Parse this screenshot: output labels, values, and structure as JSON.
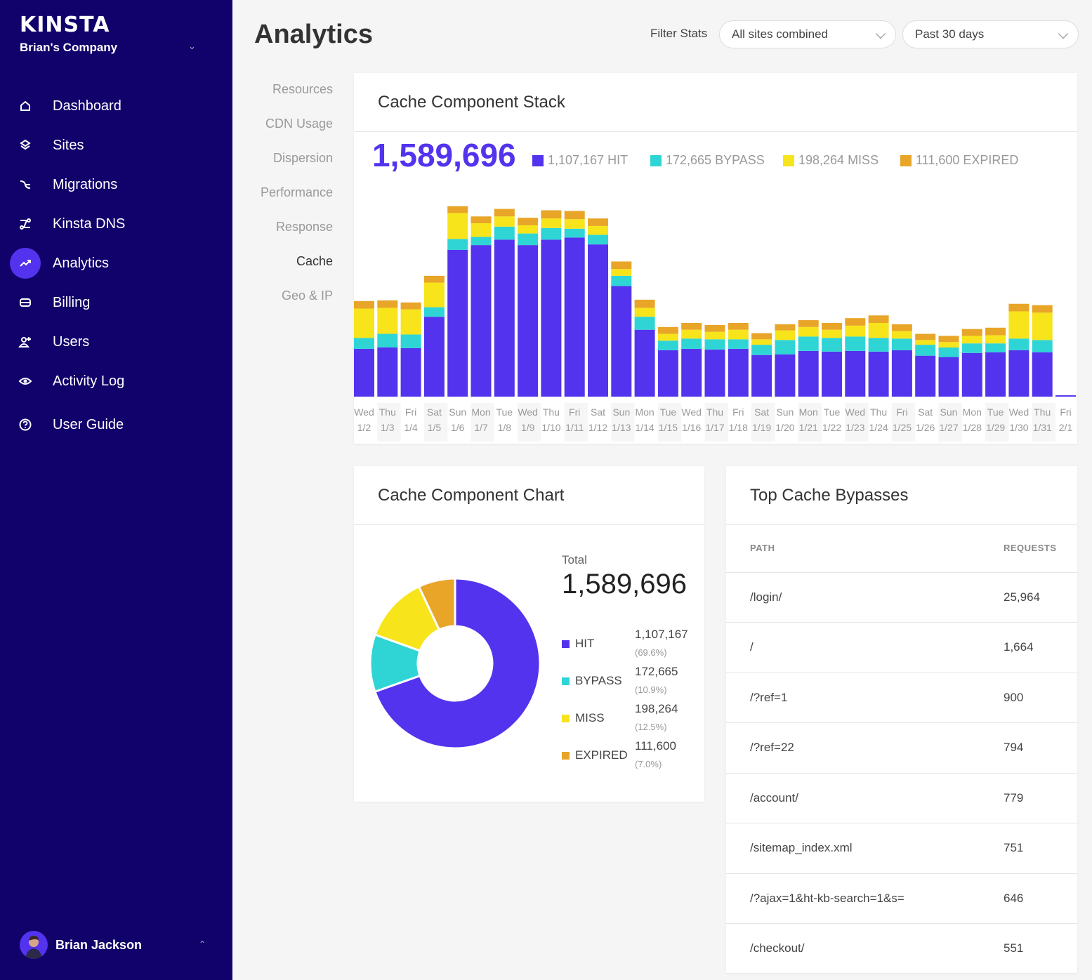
{
  "brand": {
    "logo": "KINSTA",
    "company": "Brian's Company"
  },
  "sidebar": {
    "items": [
      {
        "label": "Dashboard",
        "icon": "home-icon",
        "active": false
      },
      {
        "label": "Sites",
        "icon": "layers-icon",
        "active": false
      },
      {
        "label": "Migrations",
        "icon": "migration-icon",
        "active": false
      },
      {
        "label": "Kinsta DNS",
        "icon": "dns-icon",
        "active": false
      },
      {
        "label": "Analytics",
        "icon": "trend-icon",
        "active": true
      },
      {
        "label": "Billing",
        "icon": "card-icon",
        "active": false
      },
      {
        "label": "Users",
        "icon": "add-user-icon",
        "active": false
      },
      {
        "label": "Activity Log",
        "icon": "eye-icon",
        "active": false
      },
      {
        "label": "User Guide",
        "icon": "help-icon",
        "active": false
      }
    ],
    "user": "Brian Jackson"
  },
  "header": {
    "title": "Analytics",
    "filter_label": "Filter Stats",
    "site_select": "All sites combined",
    "range_select": "Past 30 days"
  },
  "subnav": [
    "Resources",
    "CDN Usage",
    "Dispersion",
    "Performance",
    "Response",
    "Cache",
    "Geo & IP"
  ],
  "subnav_active": "Cache",
  "colors": {
    "hit": "#5333ed",
    "bypass": "#2fd5d5",
    "miss": "#f7e41b",
    "expired": "#e8a528"
  },
  "stack": {
    "title": "Cache Component Stack",
    "total": "1,589,696",
    "legend": [
      {
        "text": "1,107,167 HIT",
        "color": "#5333ed"
      },
      {
        "text": "172,665 BYPASS",
        "color": "#2fd5d5"
      },
      {
        "text": "198,264 MISS",
        "color": "#f7e41b"
      },
      {
        "text": "111,600 EXPIRED",
        "color": "#e8a528"
      }
    ]
  },
  "chart_data": {
    "type": "bar",
    "stacked": true,
    "title": "Cache Component Stack",
    "categories": [
      "Wed 1/2",
      "Thu 1/3",
      "Fri 1/4",
      "Sat 1/5",
      "Sun 1/6",
      "Mon 1/7",
      "Tue 1/8",
      "Wed 1/9",
      "Thu 1/10",
      "Fri 1/11",
      "Sat 1/12",
      "Sun 1/13",
      "Mon 1/14",
      "Tue 1/15",
      "Wed 1/16",
      "Thu 1/17",
      "Fri 1/18",
      "Sat 1/19",
      "Sun 1/20",
      "Mon 1/21",
      "Tue 1/22",
      "Wed 1/23",
      "Thu 1/24",
      "Fri 1/25",
      "Sat 1/26",
      "Sun 1/27",
      "Mon 1/28",
      "Tue 1/29",
      "Wed 1/30",
      "Thu 1/31",
      "Fri 2/1"
    ],
    "series": [
      {
        "name": "HIT",
        "values": [
          70,
          72,
          71,
          117,
          215,
          222,
          230,
          222,
          230,
          233,
          223,
          162,
          98,
          68,
          70,
          69,
          70,
          61,
          62,
          67,
          66,
          67,
          66,
          68,
          60,
          58,
          64,
          65,
          68,
          65,
          2
        ]
      },
      {
        "name": "BYPASS",
        "values": [
          16,
          20,
          20,
          14,
          16,
          12,
          19,
          17,
          17,
          13,
          14,
          15,
          19,
          14,
          15,
          15,
          14,
          15,
          21,
          21,
          20,
          21,
          20,
          17,
          16,
          14,
          14,
          13,
          17,
          18,
          0
        ]
      },
      {
        "name": "MISS",
        "values": [
          43,
          38,
          37,
          36,
          38,
          20,
          15,
          12,
          14,
          14,
          13,
          10,
          13,
          10,
          13,
          11,
          14,
          8,
          14,
          14,
          12,
          16,
          22,
          11,
          7,
          8,
          11,
          12,
          40,
          40,
          0
        ]
      },
      {
        "name": "EXPIRED",
        "values": [
          11,
          11,
          10,
          10,
          10,
          10,
          11,
          11,
          12,
          12,
          11,
          11,
          12,
          10,
          10,
          10,
          10,
          9,
          9,
          10,
          10,
          11,
          11,
          10,
          9,
          9,
          10,
          11,
          11,
          11,
          0
        ]
      }
    ],
    "ylim": [
      0,
      290
    ]
  },
  "donut": {
    "title": "Cache Component Chart",
    "total_label": "Total",
    "total": "1,589,696",
    "rows": [
      {
        "label": "HIT",
        "value": "1,107,167",
        "pct": "(69.6%)",
        "fraction": 0.696,
        "color": "#5333ed"
      },
      {
        "label": "BYPASS",
        "value": "172,665",
        "pct": "(10.9%)",
        "fraction": 0.109,
        "color": "#2fd5d5"
      },
      {
        "label": "MISS",
        "value": "198,264",
        "pct": "(12.5%)",
        "fraction": 0.125,
        "color": "#f7e41b"
      },
      {
        "label": "EXPIRED",
        "value": "111,600",
        "pct": "(7.0%)",
        "fraction": 0.07,
        "color": "#e8a528"
      }
    ]
  },
  "bypasses": {
    "title": "Top Cache Bypasses",
    "col_path": "PATH",
    "col_requests": "REQUESTS",
    "rows": [
      {
        "path": "/login/",
        "requests": "25,964"
      },
      {
        "path": "/",
        "requests": "1,664"
      },
      {
        "path": "/?ref=1",
        "requests": "900"
      },
      {
        "path": "/?ref=22",
        "requests": "794"
      },
      {
        "path": "/account/",
        "requests": "779"
      },
      {
        "path": "/sitemap_index.xml",
        "requests": "751"
      },
      {
        "path": "/?ajax=1&ht-kb-search=1&s=",
        "requests": "646"
      },
      {
        "path": "/checkout/",
        "requests": "551"
      }
    ]
  }
}
